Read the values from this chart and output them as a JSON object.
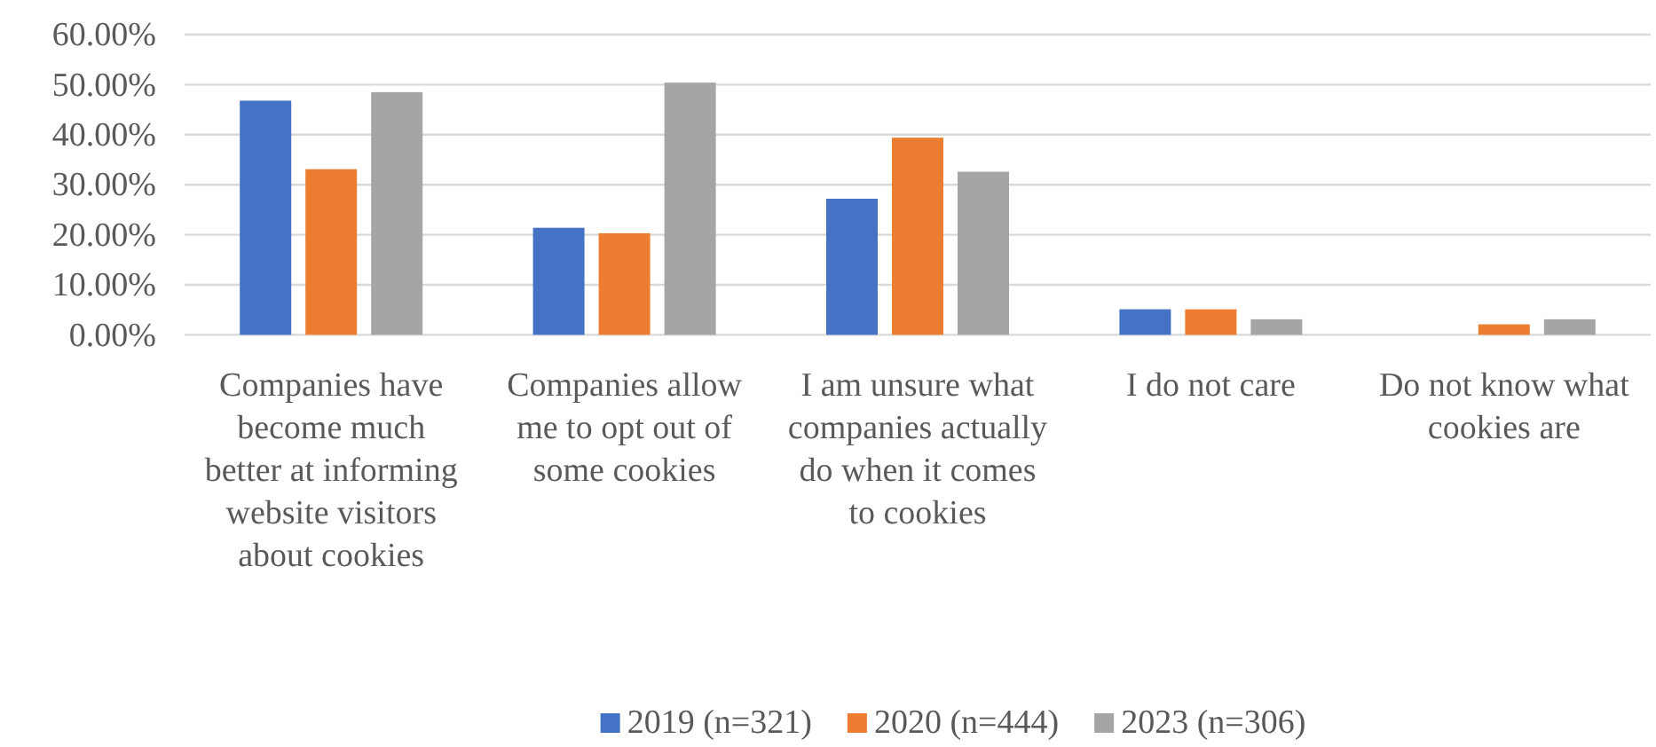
{
  "chart_data": {
    "type": "bar",
    "categories": [
      "Companies have become much better at informing website visitors about cookies",
      "Companies allow me to opt out of some cookies",
      "I am unsure what companies actually do when it comes to cookies",
      "I do not care",
      "Do not know what cookies are"
    ],
    "series": [
      {
        "name": "2019 (n=321)",
        "color": "#4472c4",
        "values": [
          46.8,
          21.4,
          27.2,
          5.1,
          null
        ]
      },
      {
        "name": "2020 (n=444)",
        "color": "#ed7d31",
        "values": [
          33.1,
          20.3,
          39.4,
          5.1,
          2.1
        ]
      },
      {
        "name": "2023 (n=306)",
        "color": "#a5a5a5",
        "values": [
          48.5,
          50.4,
          32.6,
          3.1,
          3.1
        ]
      }
    ],
    "ylim": [
      0,
      60
    ],
    "yticks": [
      {
        "value": 0,
        "label": "0.00%"
      },
      {
        "value": 10,
        "label": "10.00%"
      },
      {
        "value": 20,
        "label": "20.00%"
      },
      {
        "value": 30,
        "label": "30.00%"
      },
      {
        "value": 40,
        "label": "40.00%"
      },
      {
        "value": 50,
        "label": "50.00%"
      },
      {
        "value": 60,
        "label": "60.00%"
      }
    ],
    "grid": "y",
    "legend": "bottom"
  }
}
